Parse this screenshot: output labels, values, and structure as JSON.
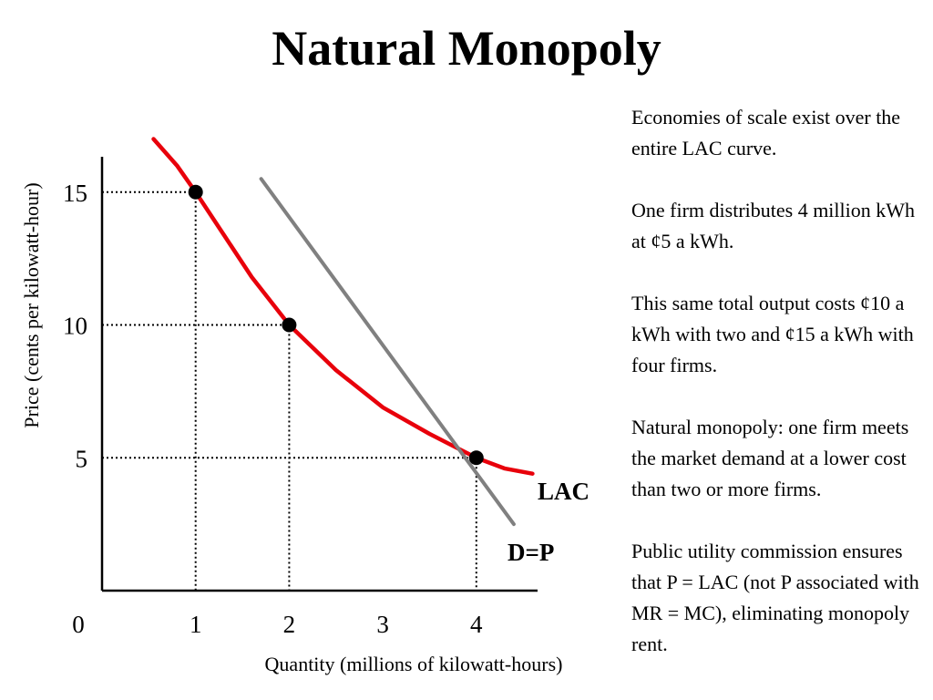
{
  "title": "Natural Monopoly",
  "notes": [
    "Economies of scale exist over the entire LAC curve.",
    "One firm distributes 4 million kWh at ¢5 a kWh.",
    "This same total output costs ¢10 a kWh with two and ¢15 a kWh with four firms.",
    "Natural monopoly: one firm meets the market demand at a lower cost than two or more firms.",
    "Public utility commission ensures that P = LAC (not P associated with MR = MC), eliminating monopoly rent."
  ],
  "chart_data": {
    "type": "line",
    "xlabel": "Quantity (millions of kilowatt-hours)",
    "ylabel": "Price (cents per kilowatt-hour)",
    "origin_label": "0",
    "x_ticks": [
      "1",
      "2",
      "3",
      "4"
    ],
    "y_ticks": [
      "15",
      "10",
      "5"
    ],
    "xlim": [
      0,
      4.65
    ],
    "ylim": [
      0,
      17.1
    ],
    "grid": false,
    "series": [
      {
        "name": "LAC",
        "color": "#e8000b",
        "x": [
          0.55,
          0.8,
          1.0,
          1.3,
          1.6,
          2.0,
          2.5,
          3.0,
          3.5,
          4.0,
          4.3,
          4.6
        ],
        "y": [
          17.0,
          16.0,
          15.0,
          13.4,
          11.8,
          10.0,
          8.3,
          6.9,
          5.9,
          5.0,
          4.6,
          4.4
        ]
      },
      {
        "name": "D=P",
        "color": "#808080",
        "x": [
          1.7,
          4.4
        ],
        "y": [
          15.5,
          2.5
        ]
      }
    ],
    "points": [
      {
        "x": 1,
        "y": 15
      },
      {
        "x": 2,
        "y": 10
      },
      {
        "x": 4,
        "y": 5
      }
    ]
  }
}
